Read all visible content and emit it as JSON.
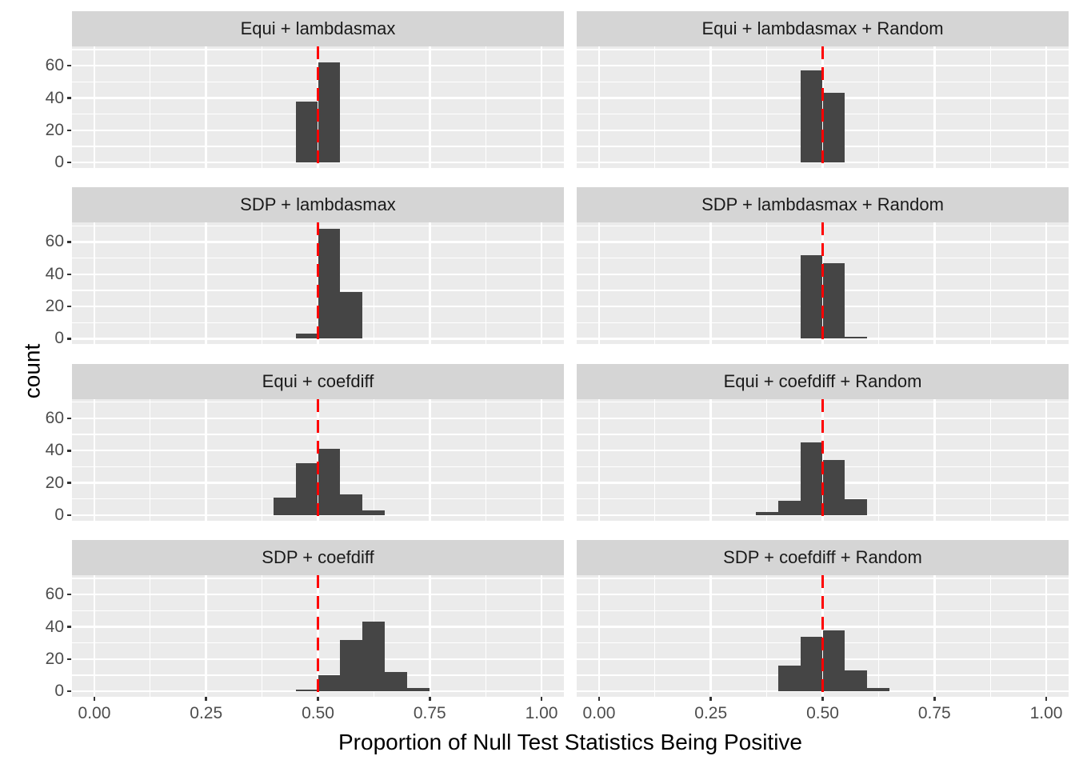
{
  "chart_data": {
    "type": "histogram",
    "facet_layout": {
      "rows": 4,
      "cols": 2
    },
    "x_axis": {
      "label": "Proportion of Null Test Statistics Being Positive",
      "range": [
        -0.05,
        1.05
      ],
      "major_ticks": [
        0,
        0.25,
        0.5,
        0.75,
        1.0
      ],
      "tick_labels": [
        "0.00",
        "0.25",
        "0.50",
        "0.75",
        "1.00"
      ],
      "minor_gridlines": [
        0.125,
        0.375,
        0.625,
        0.875
      ]
    },
    "y_axis": {
      "label": "count",
      "range": [
        -3.4,
        72
      ],
      "major_ticks": [
        0,
        20,
        40,
        60
      ],
      "tick_labels": [
        "0",
        "20",
        "40",
        "60"
      ],
      "minor_gridlines": [
        10,
        30,
        50,
        70
      ]
    },
    "binwidth": 0.05,
    "reference_line": {
      "x": 0.5,
      "color": "#ff0000",
      "style": "dashed"
    },
    "legend": "none",
    "grid": true,
    "facets": [
      {
        "title": "Equi + lambdasmax",
        "bins": [
          {
            "start": 0.45,
            "count": 38
          },
          {
            "start": 0.5,
            "count": 62
          }
        ]
      },
      {
        "title": "Equi + lambdasmax + Random",
        "bins": [
          {
            "start": 0.45,
            "count": 57
          },
          {
            "start": 0.5,
            "count": 43
          }
        ]
      },
      {
        "title": "SDP + lambdasmax",
        "bins": [
          {
            "start": 0.45,
            "count": 3
          },
          {
            "start": 0.5,
            "count": 68
          },
          {
            "start": 0.55,
            "count": 29
          }
        ]
      },
      {
        "title": "SDP + lambdasmax + Random",
        "bins": [
          {
            "start": 0.45,
            "count": 52
          },
          {
            "start": 0.5,
            "count": 47
          },
          {
            "start": 0.55,
            "count": 1
          }
        ]
      },
      {
        "title": "Equi + coefdiff",
        "bins": [
          {
            "start": 0.4,
            "count": 11
          },
          {
            "start": 0.45,
            "count": 32
          },
          {
            "start": 0.5,
            "count": 41
          },
          {
            "start": 0.55,
            "count": 13
          },
          {
            "start": 0.6,
            "count": 3
          }
        ]
      },
      {
        "title": "Equi + coefdiff + Random",
        "bins": [
          {
            "start": 0.35,
            "count": 2
          },
          {
            "start": 0.4,
            "count": 9
          },
          {
            "start": 0.45,
            "count": 45
          },
          {
            "start": 0.5,
            "count": 34
          },
          {
            "start": 0.55,
            "count": 10
          }
        ]
      },
      {
        "title": "SDP + coefdiff",
        "bins": [
          {
            "start": 0.45,
            "count": 1
          },
          {
            "start": 0.5,
            "count": 10
          },
          {
            "start": 0.55,
            "count": 32
          },
          {
            "start": 0.6,
            "count": 43
          },
          {
            "start": 0.65,
            "count": 12
          },
          {
            "start": 0.7,
            "count": 2
          }
        ]
      },
      {
        "title": "SDP + coefdiff + Random",
        "bins": [
          {
            "start": 0.4,
            "count": 16
          },
          {
            "start": 0.45,
            "count": 34
          },
          {
            "start": 0.5,
            "count": 38
          },
          {
            "start": 0.55,
            "count": 13
          },
          {
            "start": 0.6,
            "count": 2
          }
        ]
      }
    ],
    "style": {
      "bar_color": "#454545",
      "panel_background": "#ebebeb",
      "strip_background": "#d5d5d5",
      "gridline_color": "#ffffff",
      "tick_text_color": "#4d4d4d",
      "axis_title_color": "#000000",
      "reference_line_color": "#ff0000"
    }
  }
}
